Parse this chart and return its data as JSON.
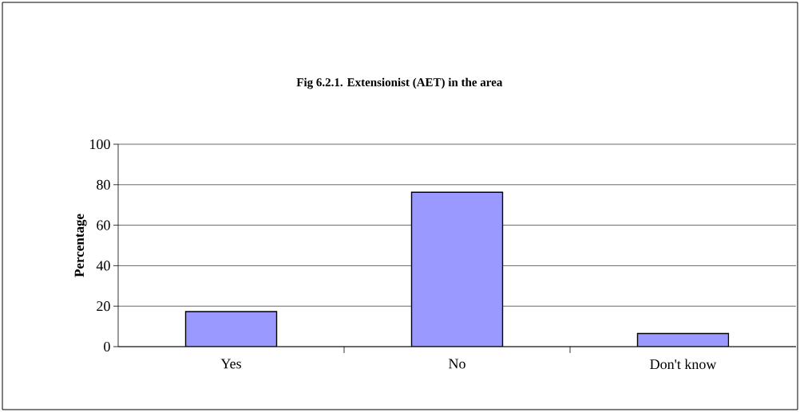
{
  "chart_data": {
    "type": "bar",
    "title": "Fig 6.2.1. Extensionist (AET) in the area",
    "ylabel": "Percentage",
    "categories": [
      "Yes",
      "No",
      "Don't know"
    ],
    "values": [
      17.3,
      76.3,
      6.5
    ],
    "color": "#9999ff",
    "ylim": [
      0,
      100
    ],
    "yticks": [
      0,
      20,
      40,
      60,
      80,
      100
    ],
    "grid": "y"
  }
}
